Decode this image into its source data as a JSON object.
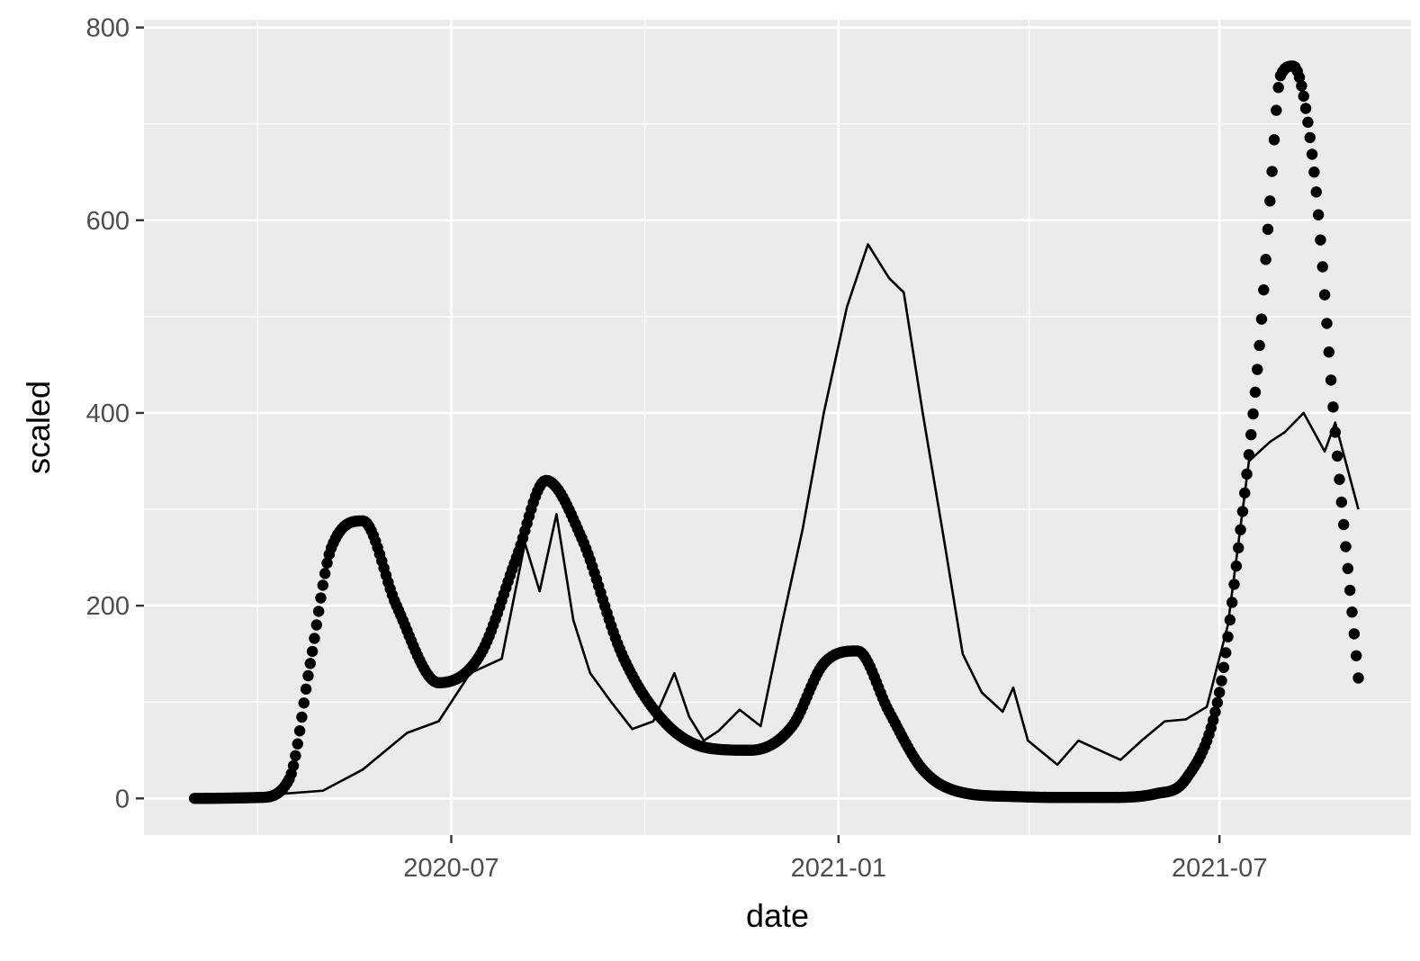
{
  "chart_data": {
    "type": "line",
    "title": "",
    "xlabel": "date",
    "ylabel": "scaled",
    "x_axis_type": "date",
    "xlim": [
      "2020-02-06",
      "2021-09-30"
    ],
    "ylim": [
      -38,
      808
    ],
    "x_ticks": [
      "2020-07-01",
      "2021-01-01",
      "2021-07-01"
    ],
    "x_tick_labels": [
      "2020-07",
      "2021-01",
      "2021-07"
    ],
    "y_ticks": [
      0,
      200,
      400,
      600,
      800
    ],
    "y_tick_labels": [
      "0",
      "200",
      "400",
      "600",
      "800"
    ],
    "grid": true,
    "legend": "none",
    "colors": {
      "panel": "#ebebeb",
      "grid": "#ffffff",
      "series": "#000000",
      "tick_label": "#4d4d4d"
    },
    "series": [
      {
        "style": "points",
        "date_range": [
          "2020-03-01",
          "2021-09-05"
        ],
        "x": [
          "2020-03-01",
          "2020-04-01",
          "2020-04-15",
          "2020-04-25",
          "2020-05-05",
          "2020-05-20",
          "2020-06-05",
          "2020-06-25",
          "2020-07-15",
          "2020-08-01",
          "2020-08-15",
          "2020-09-01",
          "2020-09-20",
          "2020-10-10",
          "2020-11-01",
          "2020-11-20",
          "2020-12-10",
          "2020-12-25",
          "2021-01-10",
          "2021-01-25",
          "2021-02-10",
          "2021-03-01",
          "2021-03-25",
          "2021-04-15",
          "2021-05-10",
          "2021-06-01",
          "2021-06-15",
          "2021-07-01",
          "2021-07-10",
          "2021-07-20",
          "2021-07-25",
          "2021-07-30",
          "2021-08-05",
          "2021-08-15",
          "2021-08-25",
          "2021-09-05"
        ],
        "y": [
          0,
          1,
          20,
          140,
          260,
          288,
          200,
          120,
          150,
          250,
          330,
          270,
          150,
          80,
          52,
          50,
          75,
          140,
          153,
          90,
          30,
          6,
          2,
          1,
          1,
          5,
          20,
          110,
          260,
          470,
          620,
          750,
          760,
          650,
          380,
          125
        ]
      },
      {
        "style": "line",
        "x": [
          "2020-03-01",
          "2020-04-01",
          "2020-05-01",
          "2020-05-20",
          "2020-06-10",
          "2020-06-25",
          "2020-07-10",
          "2020-07-25",
          "2020-08-05",
          "2020-08-12",
          "2020-08-20",
          "2020-08-28",
          "2020-09-05",
          "2020-09-15",
          "2020-09-25",
          "2020-10-05",
          "2020-10-15",
          "2020-10-22",
          "2020-10-29",
          "2020-11-05",
          "2020-11-15",
          "2020-11-25",
          "2020-12-05",
          "2020-12-15",
          "2020-12-25",
          "2021-01-05",
          "2021-01-15",
          "2021-01-25",
          "2021-02-01",
          "2021-02-10",
          "2021-02-20",
          "2021-03-01",
          "2021-03-10",
          "2021-03-20",
          "2021-03-25",
          "2021-04-01",
          "2021-04-15",
          "2021-04-25",
          "2021-05-05",
          "2021-05-15",
          "2021-05-25",
          "2021-06-05",
          "2021-06-15",
          "2021-06-25",
          "2021-07-05",
          "2021-07-15",
          "2021-07-25",
          "2021-08-01",
          "2021-08-10",
          "2021-08-20",
          "2021-08-25",
          "2021-09-05"
        ],
        "y": [
          0,
          3,
          8,
          30,
          68,
          80,
          130,
          145,
          265,
          215,
          295,
          185,
          130,
          100,
          72,
          80,
          130,
          85,
          60,
          70,
          92,
          75,
          180,
          280,
          400,
          510,
          575,
          540,
          525,
          400,
          270,
          150,
          110,
          90,
          115,
          60,
          35,
          60,
          50,
          40,
          60,
          80,
          82,
          95,
          180,
          350,
          370,
          380,
          400,
          360,
          390,
          300
        ]
      }
    ]
  }
}
